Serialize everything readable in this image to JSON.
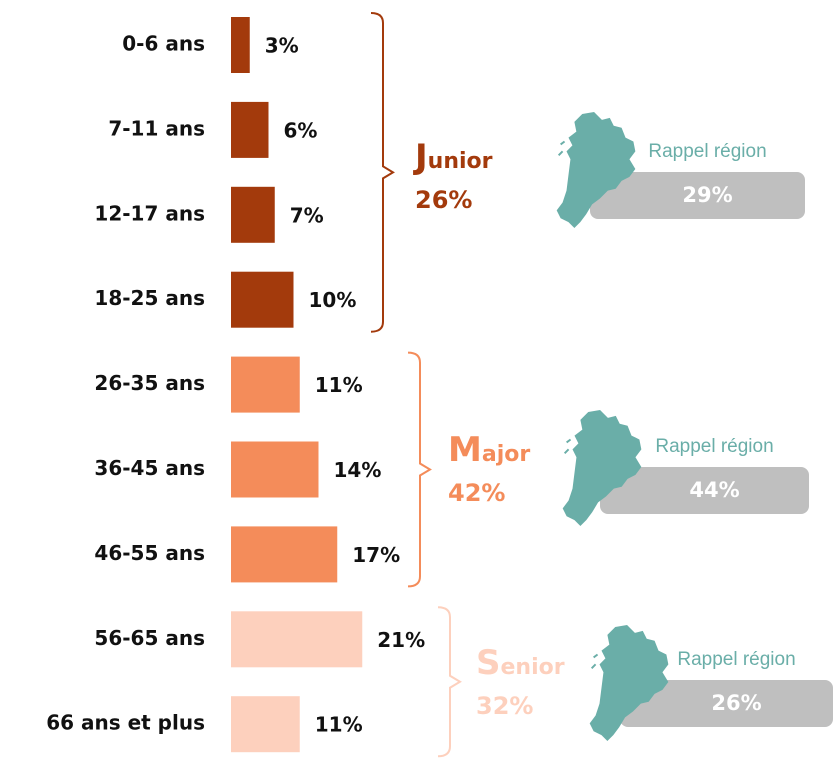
{
  "chart_data": {
    "type": "bar",
    "groups": [
      {
        "name": "Junior",
        "total": 26,
        "total_label": "26%",
        "color": "#a33a0c",
        "categories": [
          "0-6 ans",
          "7-11 ans",
          "12-17 ans",
          "18-25 ans"
        ],
        "values": [
          3,
          6,
          7,
          10
        ],
        "value_labels": [
          "3%",
          "6%",
          "7%",
          "10%"
        ],
        "region": {
          "label": "Rappel région",
          "value": 29,
          "value_label": "29%"
        }
      },
      {
        "name": "Major",
        "total": 42,
        "total_label": "42%",
        "color": "#f48c5a",
        "categories": [
          "26-35 ans",
          "36-45 ans",
          "46-55 ans"
        ],
        "values": [
          11,
          14,
          17
        ],
        "value_labels": [
          "11%",
          "14%",
          "17%"
        ],
        "region": {
          "label": "Rappel région",
          "value": 44,
          "value_label": "44%"
        }
      },
      {
        "name": "Senior",
        "total": 32,
        "total_label": "32%",
        "color": "#fdd0bd",
        "categories": [
          "56-65 ans",
          "66 ans et plus"
        ],
        "values": [
          21,
          11
        ],
        "value_labels": [
          "21%",
          "11%"
        ],
        "region": {
          "label": "Rappel région",
          "value": 26,
          "value_label": "26%"
        }
      }
    ]
  }
}
